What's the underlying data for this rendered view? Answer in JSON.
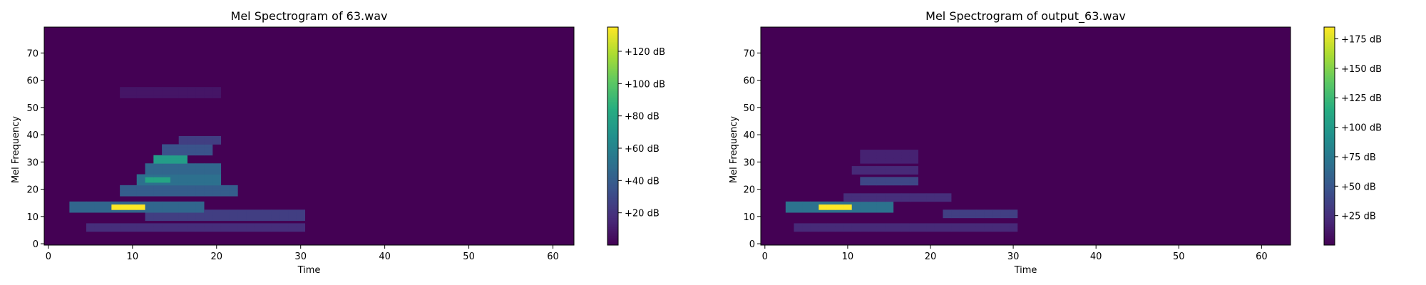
{
  "chart_data": [
    {
      "type": "heatmap",
      "title": "Mel Spectrogram of 63.wav",
      "xlabel": "Time",
      "ylabel": "Mel Frequency",
      "xlim": [
        -0.5,
        62.5
      ],
      "ylim": [
        -0.5,
        79.5
      ],
      "xticks": [
        "0",
        "10",
        "20",
        "30",
        "40",
        "50",
        "60"
      ],
      "yticks": [
        "0",
        "10",
        "20",
        "30",
        "40",
        "50",
        "60",
        "70"
      ],
      "colorbar": {
        "range": [
          0,
          135
        ],
        "ticks": [
          20,
          40,
          60,
          80,
          100,
          120
        ],
        "tick_labels": [
          "+20 dB",
          "+40 dB",
          "+60 dB",
          "+80 dB",
          "+100 dB",
          "+120 dB"
        ]
      },
      "colormap": "viridis",
      "time_frames": 63,
      "mel_bins": 80,
      "components": [
        {
          "t0": 8,
          "t1": 11,
          "m0": 13,
          "m1": 14,
          "value": 135
        },
        {
          "t0": 3,
          "t1": 18,
          "m0": 12,
          "m1": 15,
          "value": 45
        },
        {
          "t0": 5,
          "t1": 30,
          "m0": 5,
          "m1": 7,
          "value": 18
        },
        {
          "t0": 12,
          "t1": 30,
          "m0": 9,
          "m1": 12,
          "value": 25
        },
        {
          "t0": 9,
          "t1": 22,
          "m0": 18,
          "m1": 21,
          "value": 40
        },
        {
          "t0": 11,
          "t1": 20,
          "m0": 22,
          "m1": 25,
          "value": 50
        },
        {
          "t0": 12,
          "t1": 14,
          "m0": 23,
          "m1": 24,
          "value": 80
        },
        {
          "t0": 12,
          "t1": 20,
          "m0": 26,
          "m1": 29,
          "value": 45
        },
        {
          "t0": 13,
          "t1": 16,
          "m0": 30,
          "m1": 32,
          "value": 75
        },
        {
          "t0": 14,
          "t1": 19,
          "m0": 33,
          "m1": 36,
          "value": 35
        },
        {
          "t0": 16,
          "t1": 20,
          "m0": 37,
          "m1": 39,
          "value": 25
        },
        {
          "t0": 9,
          "t1": 20,
          "m0": 54,
          "m1": 57,
          "value": 8
        }
      ]
    },
    {
      "type": "heatmap",
      "title": "Mel Spectrogram of output_63.wav",
      "xlabel": "Time",
      "ylabel": "Mel Frequency",
      "xlim": [
        -0.5,
        63.5
      ],
      "ylim": [
        -0.5,
        79.5
      ],
      "xticks": [
        "0",
        "10",
        "20",
        "30",
        "40",
        "50",
        "60"
      ],
      "yticks": [
        "0",
        "10",
        "20",
        "30",
        "40",
        "50",
        "60",
        "70"
      ],
      "colorbar": {
        "range": [
          0,
          185
        ],
        "ticks": [
          25,
          50,
          75,
          100,
          125,
          150,
          175
        ],
        "tick_labels": [
          "+25 dB",
          "+50 dB",
          "+75 dB",
          "+100 dB",
          "+125 dB",
          "+150 dB",
          "+175 dB"
        ]
      },
      "colormap": "viridis",
      "time_frames": 64,
      "mel_bins": 80,
      "components": [
        {
          "t0": 7,
          "t1": 10,
          "m0": 13,
          "m1": 14,
          "value": 185
        },
        {
          "t0": 3,
          "t1": 15,
          "m0": 12,
          "m1": 15,
          "value": 70
        },
        {
          "t0": 4,
          "t1": 30,
          "m0": 5,
          "m1": 7,
          "value": 22
        },
        {
          "t0": 22,
          "t1": 30,
          "m0": 10,
          "m1": 12,
          "value": 35
        },
        {
          "t0": 10,
          "t1": 22,
          "m0": 16,
          "m1": 18,
          "value": 25
        },
        {
          "t0": 12,
          "t1": 18,
          "m0": 22,
          "m1": 24,
          "value": 40
        },
        {
          "t0": 11,
          "t1": 18,
          "m0": 26,
          "m1": 28,
          "value": 22
        },
        {
          "t0": 12,
          "t1": 18,
          "m0": 30,
          "m1": 34,
          "value": 18
        }
      ]
    }
  ]
}
